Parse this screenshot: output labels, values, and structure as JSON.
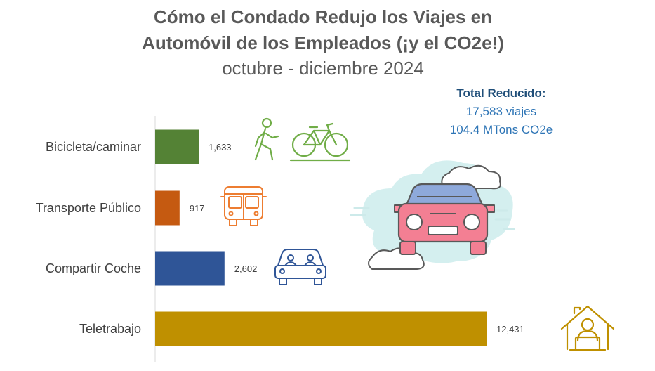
{
  "title": {
    "line1": "Cómo el Condado Redujo los Viajes en",
    "line2": "Automóvil de los Empleados (¡y el CO2e!)",
    "subtitle": "octubre - diciembre 2024"
  },
  "totals": {
    "heading": "Total Reducido:",
    "trips": "17,583 viajes",
    "co2": "104.4 MTons CO2e"
  },
  "chart_data": {
    "type": "bar",
    "orientation": "horizontal",
    "categories": [
      "Bicicleta/caminar",
      "Transporte Público",
      "Compartir Coche",
      "Teletrabajo"
    ],
    "values": [
      1633,
      917,
      2602,
      12431
    ],
    "value_labels": [
      "1,633",
      "917",
      "2,602",
      "12,431"
    ],
    "colors": [
      "#548235",
      "#C55A11",
      "#2F5597",
      "#BF9000"
    ],
    "xlim": [
      0,
      12431
    ],
    "grid": false,
    "legend": "none"
  },
  "icons": [
    "walker-icon",
    "bicycle-icon",
    "bus-icon",
    "carpool-icon",
    "car-cloud-icon",
    "home-office-icon"
  ]
}
